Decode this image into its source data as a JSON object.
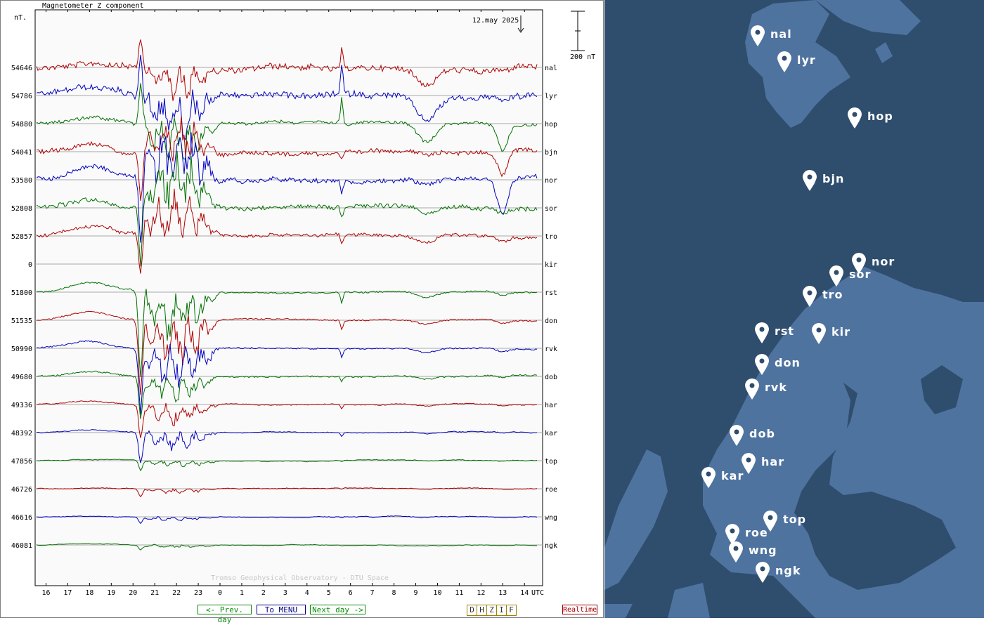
{
  "title": "Magnetometer Z component",
  "unit_label": "nT.",
  "date_label": "12.may 2025",
  "scale_label": "200 nT",
  "x_axis_unit": "UTC",
  "x_ticks": [
    "16",
    "17",
    "18",
    "19",
    "20",
    "21",
    "22",
    "23",
    "0",
    "1",
    "2",
    "3",
    "4",
    "5",
    "6",
    "7",
    "8",
    "9",
    "10",
    "11",
    "12",
    "13",
    "14"
  ],
  "watermark": "Tromso Geophysical Observatory - DTU Space",
  "nav": {
    "prev": "<- Prev. day",
    "menu": "To MENU",
    "next": "Next day ->",
    "realtime": "Realtime"
  },
  "components": [
    "D",
    "H",
    "Z",
    "I",
    "F"
  ],
  "colors": {
    "red": "#b00000",
    "blue": "#0000c0",
    "green": "#007000",
    "map_sea": "#2f4d6d",
    "map_land": "#4f739f"
  },
  "chart_data": {
    "type": "line",
    "title": "Magnetometer Z component",
    "xlabel": "UTC",
    "ylabel": "nT.",
    "x_range": [
      "15:30 UTC 11 May",
      "14:50 UTC 12 May"
    ],
    "scale_bar_nT": 200,
    "series": [
      {
        "name": "nal",
        "baseline_nT": 54646,
        "color": "red"
      },
      {
        "name": "lyr",
        "baseline_nT": 54786,
        "color": "blue"
      },
      {
        "name": "hop",
        "baseline_nT": 54880,
        "color": "green"
      },
      {
        "name": "bjn",
        "baseline_nT": 54041,
        "color": "red"
      },
      {
        "name": "nor",
        "baseline_nT": 53580,
        "color": "blue"
      },
      {
        "name": "sor",
        "baseline_nT": 52808,
        "color": "green"
      },
      {
        "name": "tro",
        "baseline_nT": 52857,
        "color": "red"
      },
      {
        "name": "kir",
        "baseline_nT": 0,
        "color": "none"
      },
      {
        "name": "rst",
        "baseline_nT": 51800,
        "color": "green"
      },
      {
        "name": "don",
        "baseline_nT": 51535,
        "color": "red"
      },
      {
        "name": "rvk",
        "baseline_nT": 50990,
        "color": "blue"
      },
      {
        "name": "dob",
        "baseline_nT": 49680,
        "color": "green"
      },
      {
        "name": "har",
        "baseline_nT": 49336,
        "color": "red"
      },
      {
        "name": "kar",
        "baseline_nT": 48392,
        "color": "blue"
      },
      {
        "name": "top",
        "baseline_nT": 47856,
        "color": "green"
      },
      {
        "name": "roe",
        "baseline_nT": 46726,
        "color": "red"
      },
      {
        "name": "wng",
        "baseline_nT": 46616,
        "color": "blue"
      },
      {
        "name": "ngk",
        "baseline_nT": 46081,
        "color": "green"
      }
    ]
  },
  "map": {
    "stations": [
      "nal",
      "lyr",
      "hop",
      "bjn",
      "nor",
      "sor",
      "tro",
      "rst",
      "kir",
      "don",
      "rvk",
      "dob",
      "har",
      "kar",
      "top",
      "roe",
      "wng",
      "ngk"
    ]
  }
}
